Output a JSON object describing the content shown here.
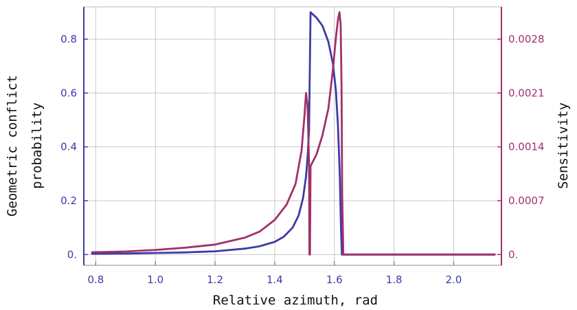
{
  "chart_data": {
    "type": "line",
    "xlabel": "Relative azimuth, rad",
    "ylabel_left": [
      "Geometric conflict",
      "probability"
    ],
    "ylabel_right": "Sensitivity",
    "xlim": [
      0.76,
      2.16
    ],
    "ylim_left": [
      -0.04,
      0.92
    ],
    "ylim_right": [
      -0.00014,
      0.00322
    ],
    "x_ticks": [
      "0.8",
      "1.0",
      "1.2",
      "1.4",
      "1.6",
      "1.8",
      "2.0"
    ],
    "y_left_ticks": [
      "0.",
      "0.2",
      "0.4",
      "0.6",
      "0.8"
    ],
    "y_right_ticks": [
      "0.",
      "0.0007",
      "0.0014",
      "0.0021",
      "0.0028"
    ],
    "grid": true,
    "colors": {
      "left_axis": "#3b3ba6",
      "right_axis": "#a0306a"
    },
    "series": [
      {
        "axis": "left",
        "color": "#3b3ba6",
        "x": [
          0.785,
          0.9,
          1.0,
          1.1,
          1.2,
          1.3,
          1.35,
          1.4,
          1.43,
          1.46,
          1.48,
          1.495,
          1.505,
          1.51,
          1.515,
          1.52,
          1.525,
          1.54,
          1.56,
          1.58,
          1.595,
          1.605,
          1.612,
          1.618,
          1.622,
          1.625,
          1.63,
          1.7,
          1.8,
          1.9,
          2.0,
          2.1,
          2.14
        ],
        "y": [
          0.003,
          0.004,
          0.006,
          0.008,
          0.012,
          0.022,
          0.031,
          0.047,
          0.066,
          0.1,
          0.145,
          0.21,
          0.29,
          0.36,
          0.46,
          0.9,
          0.895,
          0.88,
          0.85,
          0.79,
          0.71,
          0.61,
          0.48,
          0.3,
          0.1,
          0.0,
          0.0,
          0.0,
          0.0,
          0.0,
          0.0,
          0.0,
          0.0
        ]
      },
      {
        "axis": "right",
        "color": "#a0306a",
        "x": [
          0.785,
          0.9,
          1.0,
          1.1,
          1.2,
          1.3,
          1.35,
          1.4,
          1.44,
          1.47,
          1.49,
          1.5,
          1.505,
          1.51,
          1.515,
          1.5165,
          1.518,
          1.52,
          1.54,
          1.56,
          1.58,
          1.595,
          1.605,
          1.612,
          1.617,
          1.621,
          1.624,
          1.626,
          1.63,
          1.7,
          1.8,
          1.9,
          2.0,
          2.1,
          2.14
        ],
        "y": [
          3e-05,
          4e-05,
          6e-05,
          9e-05,
          0.00013,
          0.00022,
          0.0003,
          0.00045,
          0.00065,
          0.00092,
          0.00135,
          0.00182,
          0.0021,
          0.00195,
          0.0012,
          0.0,
          0.0,
          0.00115,
          0.0013,
          0.00155,
          0.0019,
          0.0024,
          0.00282,
          0.00305,
          0.00315,
          0.003,
          0.0022,
          0.0008,
          0.0,
          0.0,
          0.0,
          0.0,
          0.0,
          0.0,
          0.0
        ]
      }
    ]
  }
}
